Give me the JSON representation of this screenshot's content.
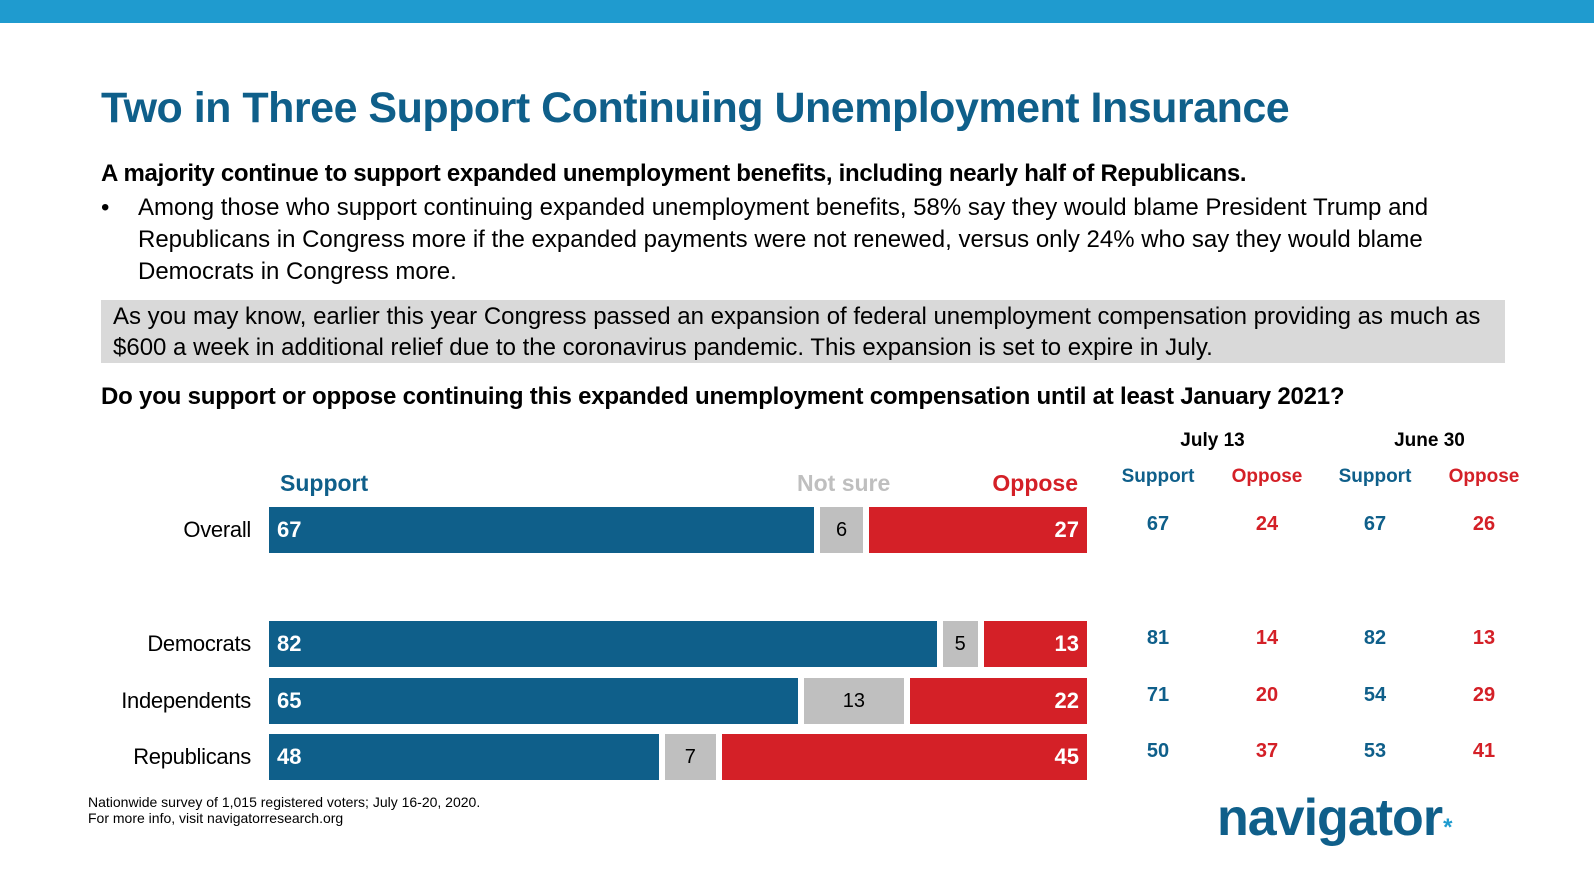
{
  "header": {
    "title": "Two in Three Support Continuing Unemployment Insurance",
    "subhead": "A majority continue to support expanded unemployment benefits, including nearly half of Republicans.",
    "bullet_symbol": "•",
    "bullet": "Among those who support continuing expanded unemployment benefits, 58% say they would blame President Trump and Republicans in Congress more if the expanded payments were not renewed, versus only 24% who say they would blame Democrats in Congress more.",
    "context": "As you may know, earlier this year Congress passed an expansion of federal unemployment compensation providing as much as $600 a week in additional relief due to the coronavirus pandemic. This expansion is set to expire in July.",
    "question": "Do you support or oppose continuing this expanded unemployment compensation until at least January 2021?"
  },
  "colors": {
    "support": "#0f5f8a",
    "not_sure": "#bfbfbf",
    "oppose": "#d42027",
    "topbar": "#1f9bcf"
  },
  "chart_data": {
    "type": "bar",
    "orientation": "horizontal-stacked",
    "title": "Do you support or oppose continuing this expanded unemployment compensation until at least January 2021?",
    "legend": [
      "Support",
      "Not sure",
      "Oppose"
    ],
    "legend_placement": "top",
    "categories": [
      "Overall",
      "Democrats",
      "Independents",
      "Republicans"
    ],
    "series": [
      {
        "name": "Support",
        "values": [
          67,
          82,
          65,
          48
        ]
      },
      {
        "name": "Not sure",
        "values": [
          6,
          5,
          13,
          7
        ]
      },
      {
        "name": "Oppose",
        "values": [
          27,
          13,
          22,
          45
        ]
      }
    ],
    "xlim": [
      0,
      100
    ],
    "trend_table": {
      "columns": [
        {
          "date": "July 13",
          "support": [
            67,
            81,
            71,
            50
          ],
          "oppose": [
            24,
            14,
            20,
            37
          ]
        },
        {
          "date": "June 30",
          "support": [
            67,
            82,
            54,
            53
          ],
          "oppose": [
            26,
            13,
            29,
            41
          ]
        }
      ],
      "support_label": "Support",
      "oppose_label": "Oppose"
    }
  },
  "footer": {
    "line1": "Nationwide survey of 1,015 registered voters; July 16-20, 2020.",
    "line2": "For more info, visit navigatorresearch.org",
    "logo": "navigator",
    "logo_mark": "*"
  }
}
